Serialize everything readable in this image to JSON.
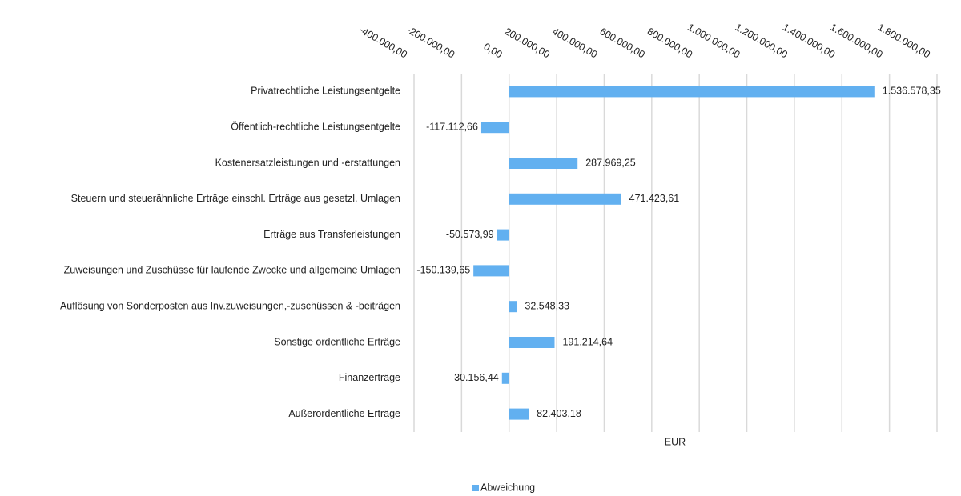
{
  "chart_data": {
    "type": "hbar",
    "categories": [
      "Privatrechtliche Leistungsentgelte",
      "Öffentlich-rechtliche Leistungsentgelte",
      "Kostenersatzleistungen und -erstattungen",
      "Steuern und steuerähnliche Erträge einschl. Erträge aus gesetzl. Umlagen",
      "Erträge aus Transferleistungen",
      "Zuweisungen und Zuschüsse für laufende Zwecke und allgemeine Umlagen",
      "Auflösung von Sonderposten aus Inv.zuweisungen,-zuschüssen & -beiträgen",
      "Sonstige ordentliche Erträge",
      "Finanzerträge",
      "Außerordentliche Erträge"
    ],
    "series": [
      {
        "name": "Abweichung",
        "color": "#62b0f0",
        "values": [
          1536578.35,
          -117112.66,
          287969.25,
          471423.61,
          -50573.99,
          -150139.65,
          32548.33,
          191214.64,
          -30156.44,
          82403.18
        ],
        "value_labels": [
          "1.536.578,35",
          "-117.112,66",
          "287.969,25",
          "471.423,61",
          "-50.573,99",
          "-150.139,65",
          "32.548,33",
          "191.214,64",
          "-30.156,44",
          "82.403,18"
        ]
      }
    ],
    "xlabel": "EUR",
    "xlim": [
      -400000,
      1800000
    ],
    "xticks": [
      {
        "value": -400000,
        "label": "-400.000,00"
      },
      {
        "value": -200000,
        "label": "-200.000,00"
      },
      {
        "value": 0,
        "label": "0,00"
      },
      {
        "value": 200000,
        "label": "200.000,00"
      },
      {
        "value": 400000,
        "label": "400.000,00"
      },
      {
        "value": 600000,
        "label": "600.000,00"
      },
      {
        "value": 800000,
        "label": "800.000,00"
      },
      {
        "value": 1000000,
        "label": "1.000.000,00"
      },
      {
        "value": 1200000,
        "label": "1.200.000,00"
      },
      {
        "value": 1400000,
        "label": "1.400.000,00"
      },
      {
        "value": 1600000,
        "label": "1.600.000,00"
      },
      {
        "value": 1800000,
        "label": "1.800.000,00"
      }
    ],
    "grid": true,
    "legend": "bottom"
  }
}
